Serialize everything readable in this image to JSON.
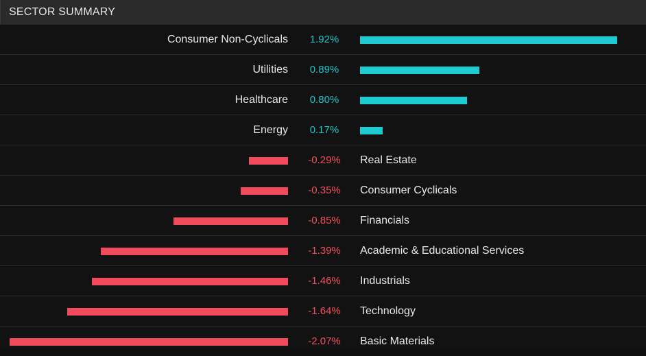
{
  "header": {
    "title": "SECTOR SUMMARY"
  },
  "colors": {
    "positive": "#1ecbd0",
    "negative": "#f04a5c"
  },
  "chart_data": {
    "type": "bar",
    "orientation": "horizontal",
    "title": "SECTOR SUMMARY",
    "categories": [
      "Consumer Non-Cyclicals",
      "Utilities",
      "Healthcare",
      "Energy",
      "Real Estate",
      "Consumer Cyclicals",
      "Financials",
      "Academic & Educational Services",
      "Industrials",
      "Technology",
      "Basic Materials"
    ],
    "values": [
      1.92,
      0.89,
      0.8,
      0.17,
      -0.29,
      -0.35,
      -0.85,
      -1.39,
      -1.46,
      -1.64,
      -2.07
    ],
    "value_labels": [
      "1.92%",
      "0.89%",
      "0.80%",
      "0.17%",
      "-0.29%",
      "-0.35%",
      "-0.85%",
      "-1.39%",
      "-1.46%",
      "-1.64%",
      "-2.07%"
    ],
    "unit": "%"
  }
}
